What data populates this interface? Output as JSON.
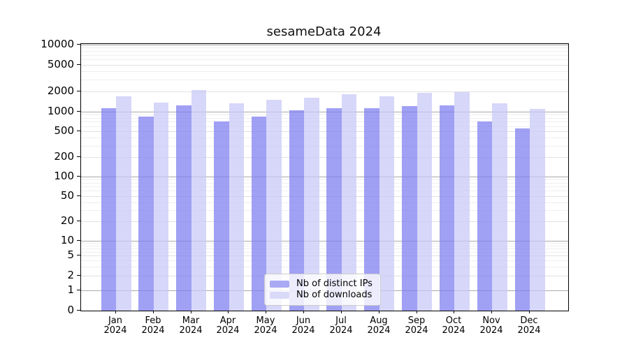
{
  "figure": {
    "title": "sesameData 2024"
  },
  "chart_data": {
    "type": "bar",
    "title": "sesameData 2024",
    "yscale": "symlog",
    "ylim": [
      0,
      10000
    ],
    "grid": true,
    "legend_position": "lower center",
    "categories": [
      "Jan 2024",
      "Feb 2024",
      "Mar 2024",
      "Apr 2024",
      "May 2024",
      "Jun 2024",
      "Jul 2024",
      "Aug 2024",
      "Sep 2024",
      "Oct 2024",
      "Nov 2024",
      "Dec 2024"
    ],
    "y_ticks": [
      0,
      1,
      2,
      5,
      10,
      20,
      50,
      100,
      200,
      500,
      1000,
      2000,
      5000,
      10000
    ],
    "series": [
      {
        "name": "Nb of distinct IPs",
        "values": [
          1130,
          840,
          1240,
          710,
          840,
          1050,
          1130,
          1140,
          1210,
          1250,
          710,
          550
        ]
      },
      {
        "name": "Nb of downloads",
        "values": [
          1700,
          1370,
          2100,
          1330,
          1500,
          1600,
          1820,
          1700,
          1910,
          1980,
          1330,
          1090
        ]
      }
    ]
  },
  "legend": {
    "items": [
      {
        "label": "Nb of distinct IPs",
        "swatch_color": "#a9a9f4"
      },
      {
        "label": "Nb of downloads",
        "swatch_color": "#d9d9f8"
      }
    ]
  },
  "colors": {
    "ips_fill": "rgba(124,124,240,0.72)",
    "downloads_fill": "rgba(200,200,246,0.72)",
    "grid_major": "#a9a9a9",
    "grid_labeled_minor": "#e1e1e1",
    "grid_minor": "#efefef",
    "axis": "#000000",
    "text": "#111111"
  }
}
